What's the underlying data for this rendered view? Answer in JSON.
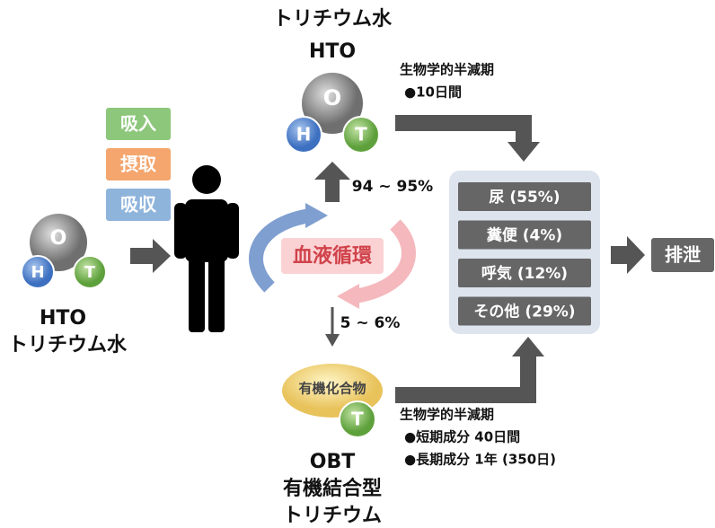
{
  "left_molecule": {
    "o": "O",
    "h": "H",
    "t": "T",
    "label1": "HTO",
    "label2": "トリチウム水"
  },
  "intake": [
    "吸入",
    "摂取",
    "吸収"
  ],
  "top": {
    "title1": "トリチウム水",
    "title2": "HTO",
    "o": "O",
    "h": "H",
    "t": "T"
  },
  "up_ratio": "94 ~ 95%",
  "circulation": "血液循環",
  "down_ratio": "5 ~ 6%",
  "bottom": {
    "compound": "有機化合物",
    "t": "T",
    "label1": "OBT",
    "label2": "有機結合型",
    "label3": "トリチウム"
  },
  "top_halflife": {
    "title": "生物学的半減期",
    "item": "●10日間"
  },
  "bottom_halflife": {
    "title": "生物学的半減期",
    "items": [
      "●短期成分 40日間",
      "●長期成分 1年 (350日)"
    ]
  },
  "excretion": [
    "尿 (55%)",
    "糞便 (4%)",
    "呼気 (12%)",
    "その他 (29%)"
  ],
  "excretion_label": "排泄"
}
